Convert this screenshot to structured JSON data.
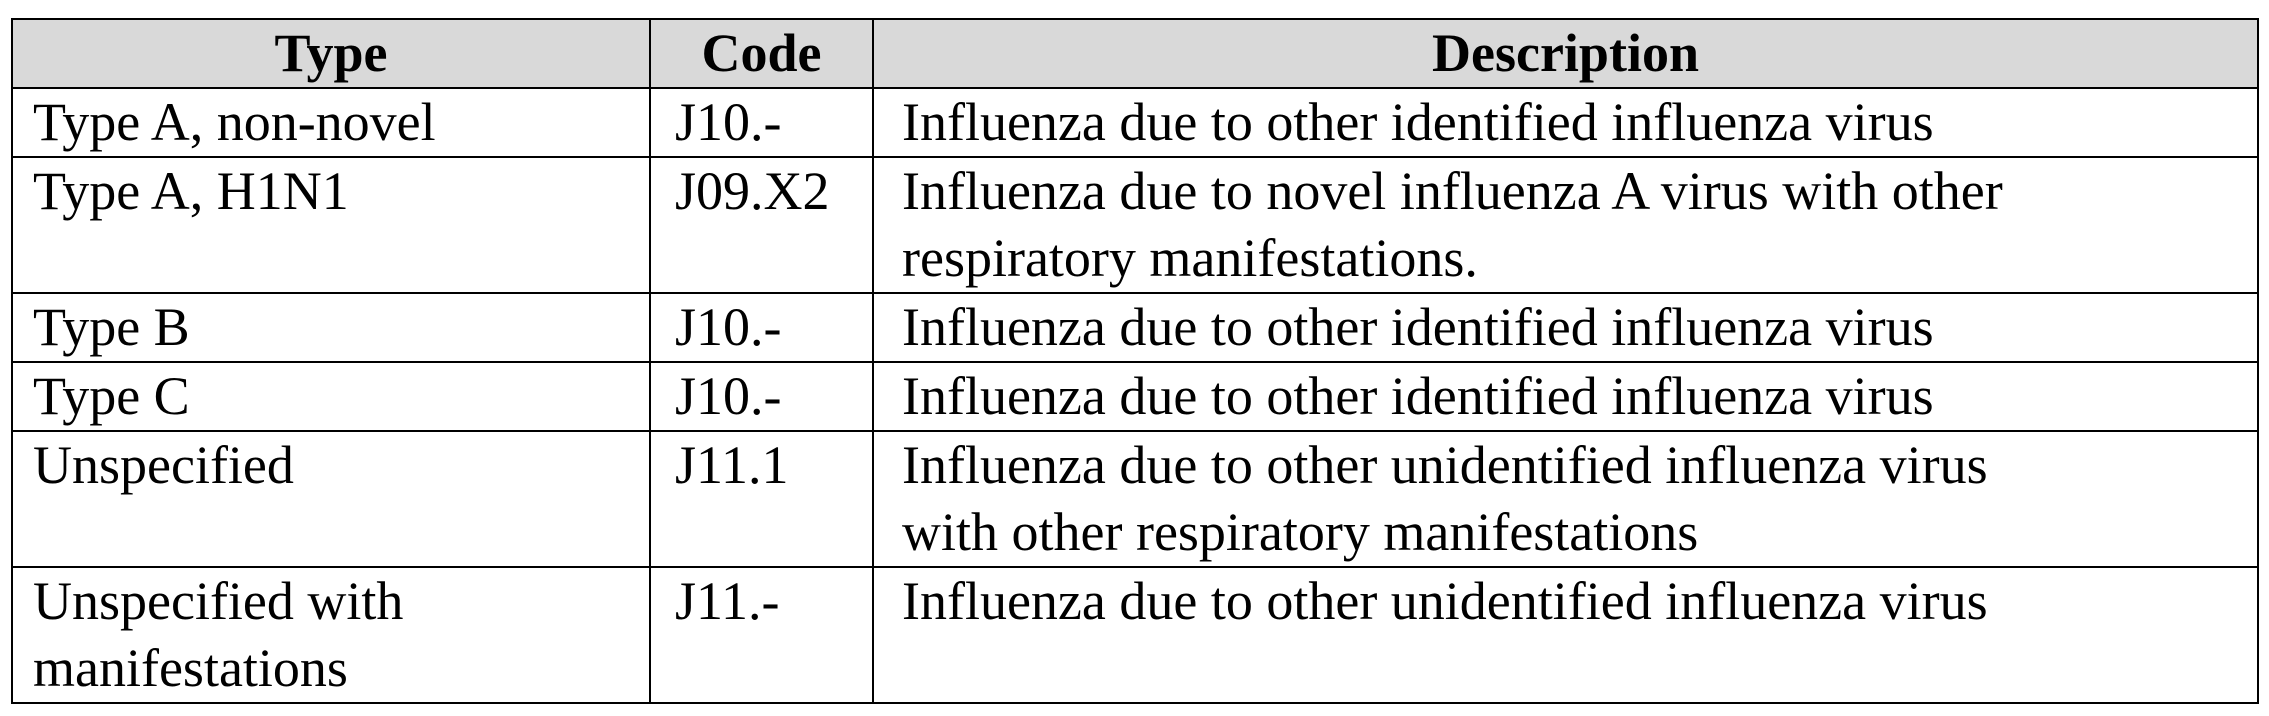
{
  "table": {
    "headers": [
      "Type",
      "Code",
      "Description"
    ],
    "rows": [
      {
        "type": [
          "Type A, non-novel"
        ],
        "code": "J10.-",
        "description": [
          "Influenza due to other identified influenza virus"
        ]
      },
      {
        "type": [
          "Type A, H1N1"
        ],
        "code": "J09.X2",
        "description": [
          "Influenza due to novel influenza A virus with other",
          "respiratory manifestations."
        ]
      },
      {
        "type": [
          "Type B"
        ],
        "code": "J10.-",
        "description": [
          "Influenza due to other identified influenza virus"
        ]
      },
      {
        "type": [
          "Type C"
        ],
        "code": "J10.-",
        "description": [
          "Influenza due to other identified influenza virus"
        ]
      },
      {
        "type": [
          "Unspecified"
        ],
        "code": "J11.1",
        "description": [
          "Influenza due to other unidentified influenza virus",
          "with other respiratory manifestations"
        ]
      },
      {
        "type": [
          "Unspecified with",
          "manifestations"
        ],
        "code": "J11.-",
        "description": [
          "Influenza due to other unidentified influenza virus"
        ]
      }
    ]
  }
}
